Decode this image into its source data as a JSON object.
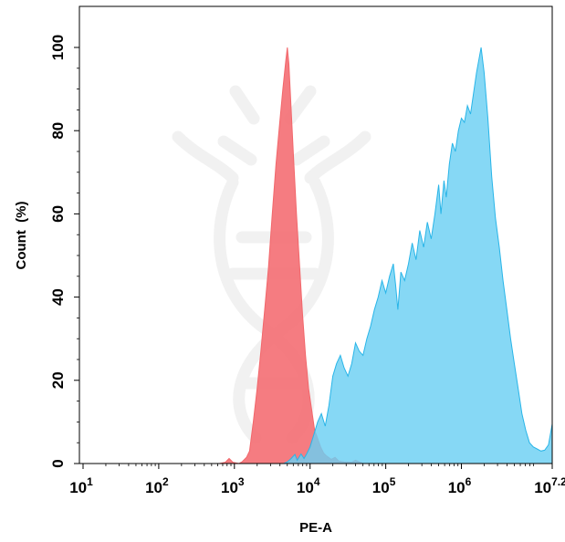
{
  "chart_data": {
    "type": "area",
    "title": "",
    "xlabel": "PE-A",
    "ylabel": "Count  (%)",
    "x_scale": "log10",
    "xlim": [
      1,
      7.2
    ],
    "ylim": [
      0,
      100
    ],
    "x_ticks": [
      {
        "base": "10",
        "exp": "1",
        "value": 1
      },
      {
        "base": "10",
        "exp": "2",
        "value": 2
      },
      {
        "base": "10",
        "exp": "3",
        "value": 3
      },
      {
        "base": "10",
        "exp": "4",
        "value": 4
      },
      {
        "base": "10",
        "exp": "5",
        "value": 5
      },
      {
        "base": "10",
        "exp": "6",
        "value": 6
      },
      {
        "base": "10",
        "exp": "7.2",
        "value": 7.2
      }
    ],
    "y_ticks": [
      "0",
      "20",
      "40",
      "60",
      "80",
      "100"
    ],
    "grid": false,
    "legend": "none",
    "series": [
      {
        "color": "#f2676b",
        "fill": "#f46a6f",
        "points": [
          [
            1.0,
            0
          ],
          [
            2.8,
            0
          ],
          [
            2.88,
            0.3
          ],
          [
            2.93,
            1.2
          ],
          [
            2.98,
            0.3
          ],
          [
            3.06,
            0
          ],
          [
            3.1,
            0.4
          ],
          [
            3.16,
            1.5
          ],
          [
            3.2,
            3
          ],
          [
            3.25,
            10
          ],
          [
            3.3,
            18
          ],
          [
            3.35,
            27
          ],
          [
            3.4,
            37
          ],
          [
            3.45,
            47
          ],
          [
            3.5,
            60
          ],
          [
            3.55,
            72
          ],
          [
            3.6,
            82
          ],
          [
            3.64,
            90
          ],
          [
            3.68,
            97
          ],
          [
            3.7,
            100
          ],
          [
            3.72,
            96
          ],
          [
            3.75,
            85
          ],
          [
            3.78,
            74
          ],
          [
            3.82,
            60
          ],
          [
            3.86,
            48
          ],
          [
            3.9,
            36
          ],
          [
            3.94,
            26
          ],
          [
            3.98,
            18
          ],
          [
            4.02,
            13
          ],
          [
            4.06,
            8
          ],
          [
            4.1,
            6
          ],
          [
            4.14,
            4
          ],
          [
            4.18,
            2.5
          ],
          [
            4.22,
            1.8
          ],
          [
            4.28,
            1
          ],
          [
            4.33,
            1.5
          ],
          [
            4.38,
            0.6
          ],
          [
            4.45,
            0.4
          ],
          [
            4.55,
            0.3
          ],
          [
            4.6,
            0.8
          ],
          [
            4.7,
            0
          ],
          [
            7.2,
            0
          ]
        ]
      },
      {
        "color": "#29b5e8",
        "fill": "#6bd0f3",
        "points": [
          [
            1.0,
            0
          ],
          [
            3.65,
            0
          ],
          [
            3.7,
            0.4
          ],
          [
            3.75,
            1.2
          ],
          [
            3.8,
            2.2
          ],
          [
            3.83,
            0.8
          ],
          [
            3.88,
            2.3
          ],
          [
            3.92,
            1.2
          ],
          [
            3.96,
            2.5
          ],
          [
            4.0,
            4
          ],
          [
            4.05,
            7
          ],
          [
            4.1,
            10
          ],
          [
            4.15,
            12
          ],
          [
            4.2,
            9
          ],
          [
            4.25,
            14
          ],
          [
            4.3,
            21
          ],
          [
            4.35,
            24
          ],
          [
            4.4,
            26
          ],
          [
            4.45,
            23
          ],
          [
            4.5,
            21
          ],
          [
            4.55,
            24
          ],
          [
            4.6,
            29
          ],
          [
            4.65,
            27
          ],
          [
            4.7,
            26
          ],
          [
            4.75,
            30
          ],
          [
            4.8,
            33
          ],
          [
            4.85,
            37
          ],
          [
            4.9,
            40
          ],
          [
            4.95,
            44
          ],
          [
            5.0,
            41
          ],
          [
            5.05,
            45
          ],
          [
            5.1,
            48
          ],
          [
            5.13,
            43
          ],
          [
            5.16,
            37
          ],
          [
            5.2,
            46
          ],
          [
            5.25,
            44
          ],
          [
            5.3,
            48
          ],
          [
            5.35,
            53
          ],
          [
            5.4,
            49
          ],
          [
            5.45,
            56
          ],
          [
            5.5,
            52
          ],
          [
            5.55,
            58
          ],
          [
            5.6,
            54
          ],
          [
            5.65,
            60
          ],
          [
            5.7,
            67
          ],
          [
            5.73,
            60
          ],
          [
            5.77,
            68
          ],
          [
            5.8,
            64
          ],
          [
            5.84,
            72
          ],
          [
            5.88,
            77
          ],
          [
            5.92,
            75
          ],
          [
            5.96,
            80
          ],
          [
            6.0,
            83
          ],
          [
            6.04,
            82
          ],
          [
            6.08,
            86
          ],
          [
            6.12,
            84
          ],
          [
            6.16,
            89
          ],
          [
            6.2,
            94
          ],
          [
            6.23,
            97
          ],
          [
            6.26,
            100
          ],
          [
            6.3,
            94
          ],
          [
            6.35,
            83
          ],
          [
            6.4,
            69
          ],
          [
            6.45,
            59
          ],
          [
            6.5,
            52
          ],
          [
            6.55,
            44
          ],
          [
            6.6,
            37
          ],
          [
            6.65,
            30
          ],
          [
            6.7,
            24
          ],
          [
            6.75,
            18
          ],
          [
            6.8,
            12
          ],
          [
            6.85,
            8
          ],
          [
            6.9,
            5
          ],
          [
            6.95,
            4
          ],
          [
            7.0,
            3.5
          ],
          [
            7.05,
            3
          ],
          [
            7.1,
            3.2
          ],
          [
            7.15,
            4.5
          ],
          [
            7.2,
            9.5
          ],
          [
            7.2,
            0
          ]
        ]
      }
    ]
  }
}
